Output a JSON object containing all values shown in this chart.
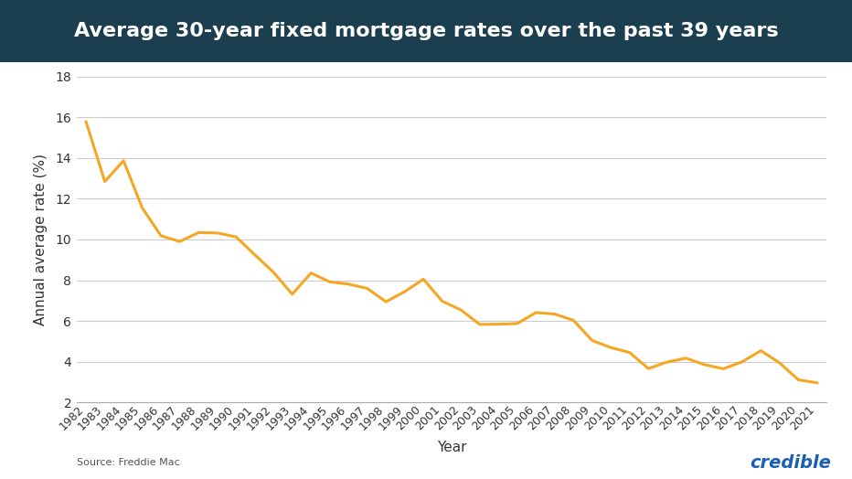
{
  "title": "Average 30-year fixed mortgage rates over the past 39 years",
  "title_bg_color": "#1c3f50",
  "title_text_color": "#ffffff",
  "line_color": "#f5a623",
  "line_width": 2.2,
  "bg_color": "#ffffff",
  "plot_bg_color": "#ffffff",
  "grid_color": "#cccccc",
  "ylabel": "Annual average rate (%)",
  "xlabel": "Year",
  "source_text": "Source: Freddie Mac",
  "brand_text": "credible",
  "brand_color": "#1a5fb4",
  "years": [
    1982,
    1983,
    1984,
    1985,
    1986,
    1987,
    1988,
    1989,
    1990,
    1991,
    1992,
    1993,
    1994,
    1995,
    1996,
    1997,
    1998,
    1999,
    2000,
    2001,
    2002,
    2003,
    2004,
    2005,
    2006,
    2007,
    2008,
    2009,
    2010,
    2011,
    2012,
    2013,
    2014,
    2015,
    2016,
    2017,
    2018,
    2019,
    2020,
    2021
  ],
  "rates": [
    15.78,
    12.85,
    13.87,
    11.55,
    10.18,
    9.9,
    10.34,
    10.32,
    10.13,
    9.25,
    8.39,
    7.31,
    8.35,
    7.92,
    7.81,
    7.6,
    6.94,
    7.44,
    8.05,
    6.97,
    6.54,
    5.83,
    5.84,
    5.87,
    6.41,
    6.34,
    6.03,
    5.04,
    4.69,
    4.45,
    3.66,
    3.98,
    4.17,
    3.85,
    3.65,
    3.99,
    4.54,
    3.94,
    3.11,
    2.96
  ],
  "ylim": [
    2,
    18
  ],
  "yticks": [
    2,
    4,
    6,
    8,
    10,
    12,
    14,
    16,
    18
  ],
  "tick_fontsize": 10,
  "label_fontsize": 11,
  "title_fontsize": 16
}
